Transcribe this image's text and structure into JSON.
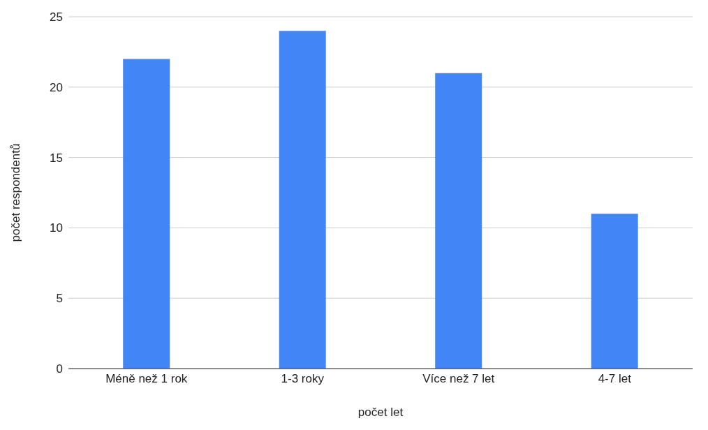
{
  "chart_data": {
    "type": "bar",
    "xlabel": "počet let",
    "ylabel": "počet respondentů",
    "categories": [
      "Méně než 1 rok",
      "1-3 roky",
      "Více než 7 let",
      "4-7 let"
    ],
    "values": [
      22,
      24,
      21,
      11
    ],
    "color": "#4285f4",
    "ylim": [
      0,
      25
    ],
    "yticks": [
      0,
      5,
      10,
      15,
      20,
      25
    ],
    "grid": "y",
    "legend": false
  }
}
